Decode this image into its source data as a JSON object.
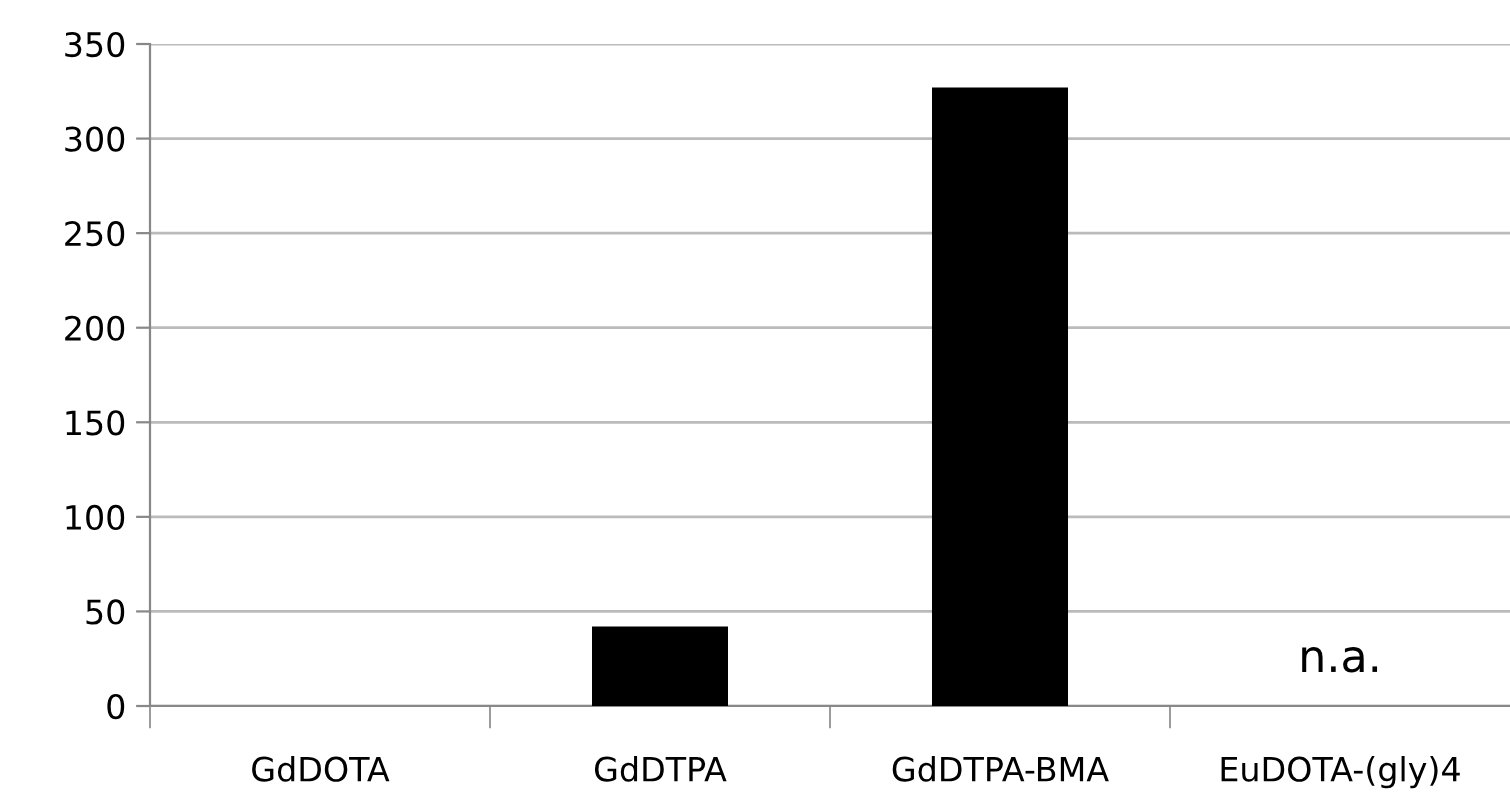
{
  "chart_data": {
    "type": "bar",
    "categories": [
      "GdDOTA",
      "GdDTPA",
      "GdDTPA-BMA",
      "EuDOTA-(gly)4"
    ],
    "values": [
      0,
      42,
      327,
      null
    ],
    "color": "#000000",
    "ylim": [
      0,
      350
    ],
    "yticks": [
      0,
      50,
      100,
      150,
      200,
      250,
      300,
      350
    ],
    "grid": "y",
    "legend": false,
    "annotations": [
      "n.a."
    ]
  }
}
